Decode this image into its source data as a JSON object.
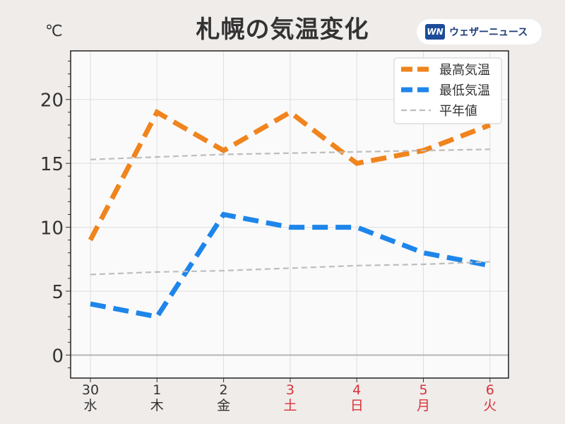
{
  "header": {
    "title": "札幌の気温変化",
    "unit": "℃"
  },
  "brand": {
    "logo_text": "WN",
    "name": "ウェザーニュース",
    "color": "#1d4c9a"
  },
  "chart_data": {
    "type": "line",
    "title": "札幌の気温変化",
    "ylabel": "℃",
    "ylim": [
      -1.8,
      23.8
    ],
    "yticks": [
      0,
      5,
      10,
      15,
      20
    ],
    "grid": true,
    "legend_position": "top-right",
    "categories": [
      {
        "day": "30",
        "weekday": "水",
        "color": "#333333"
      },
      {
        "day": "1",
        "weekday": "木",
        "color": "#333333"
      },
      {
        "day": "2",
        "weekday": "金",
        "color": "#333333"
      },
      {
        "day": "3",
        "weekday": "土",
        "color": "#d9323a"
      },
      {
        "day": "4",
        "weekday": "日",
        "color": "#d9323a"
      },
      {
        "day": "5",
        "weekday": "月",
        "color": "#d9323a"
      },
      {
        "day": "6",
        "weekday": "火",
        "color": "#d9323a"
      }
    ],
    "series": [
      {
        "name": "最高気温",
        "values": [
          9,
          19,
          16,
          19,
          15,
          16,
          18
        ],
        "color": "#f0841d",
        "style": "dashed-thick"
      },
      {
        "name": "最低気温",
        "values": [
          4,
          3,
          11,
          10,
          10,
          8,
          7
        ],
        "color": "#1e86ea",
        "style": "dashed-thick"
      },
      {
        "name": "平年値",
        "values": [
          15.3,
          15.5,
          15.7,
          15.8,
          15.9,
          16.0,
          16.1
        ],
        "color": "#bdbdbd",
        "style": "dashed-thin"
      },
      {
        "name": "平年値",
        "values": [
          6.3,
          6.5,
          6.6,
          6.8,
          7.0,
          7.1,
          7.3
        ],
        "color": "#bdbdbd",
        "style": "dashed-thin",
        "legend": false
      }
    ]
  }
}
